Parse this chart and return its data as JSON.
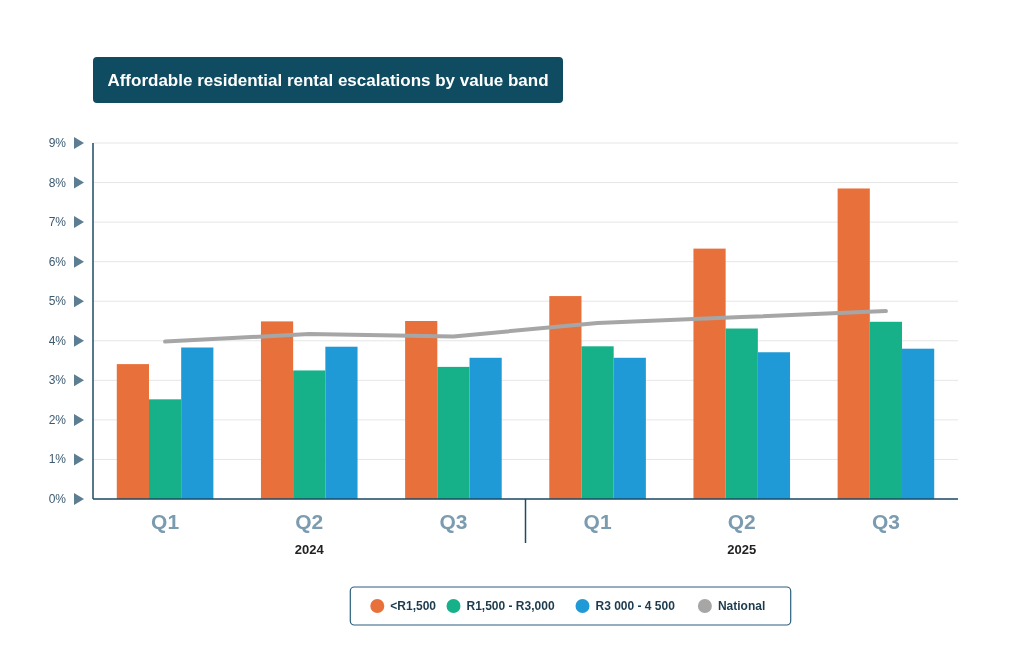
{
  "chart_data": {
    "type": "bar",
    "title": "Affordable residential rental escalations by value band",
    "categories": [
      "Q1",
      "Q2",
      "Q3",
      "Q1",
      "Q2",
      "Q3"
    ],
    "annotations": [
      "2024",
      "2025"
    ],
    "series": [
      {
        "name": "<R1,500",
        "color": "#e8703a",
        "values": [
          3.41,
          4.49,
          4.5,
          5.13,
          6.33,
          7.85
        ]
      },
      {
        "name": "R1,500 - R3,000",
        "color": "#17b189",
        "values": [
          2.52,
          3.25,
          3.34,
          3.86,
          4.31,
          4.48
        ]
      },
      {
        "name": "R3 000 - 4 500",
        "color": "#1f9ad6",
        "values": [
          3.83,
          3.85,
          3.57,
          3.57,
          3.71,
          3.8
        ]
      },
      {
        "name": "National",
        "type": "line",
        "color": "#a6a6a6",
        "values": [
          3.98,
          4.17,
          4.11,
          4.45,
          4.6,
          4.75
        ]
      }
    ],
    "ylim": [
      0,
      9
    ],
    "yticks": [
      {
        "value": 0,
        "label": "0%"
      },
      {
        "value": 1,
        "label": "1%"
      },
      {
        "value": 2,
        "label": "2%"
      },
      {
        "value": 3,
        "label": "3%"
      },
      {
        "value": 4,
        "label": "4%"
      },
      {
        "value": 5,
        "label": "5%"
      },
      {
        "value": 6,
        "label": "6%"
      },
      {
        "value": 7,
        "label": "7%"
      },
      {
        "value": 8,
        "label": "8%"
      },
      {
        "value": 9,
        "label": "9%"
      }
    ],
    "grid": "y",
    "legend": "bottom",
    "marker": "none",
    "line_style": "solid"
  }
}
